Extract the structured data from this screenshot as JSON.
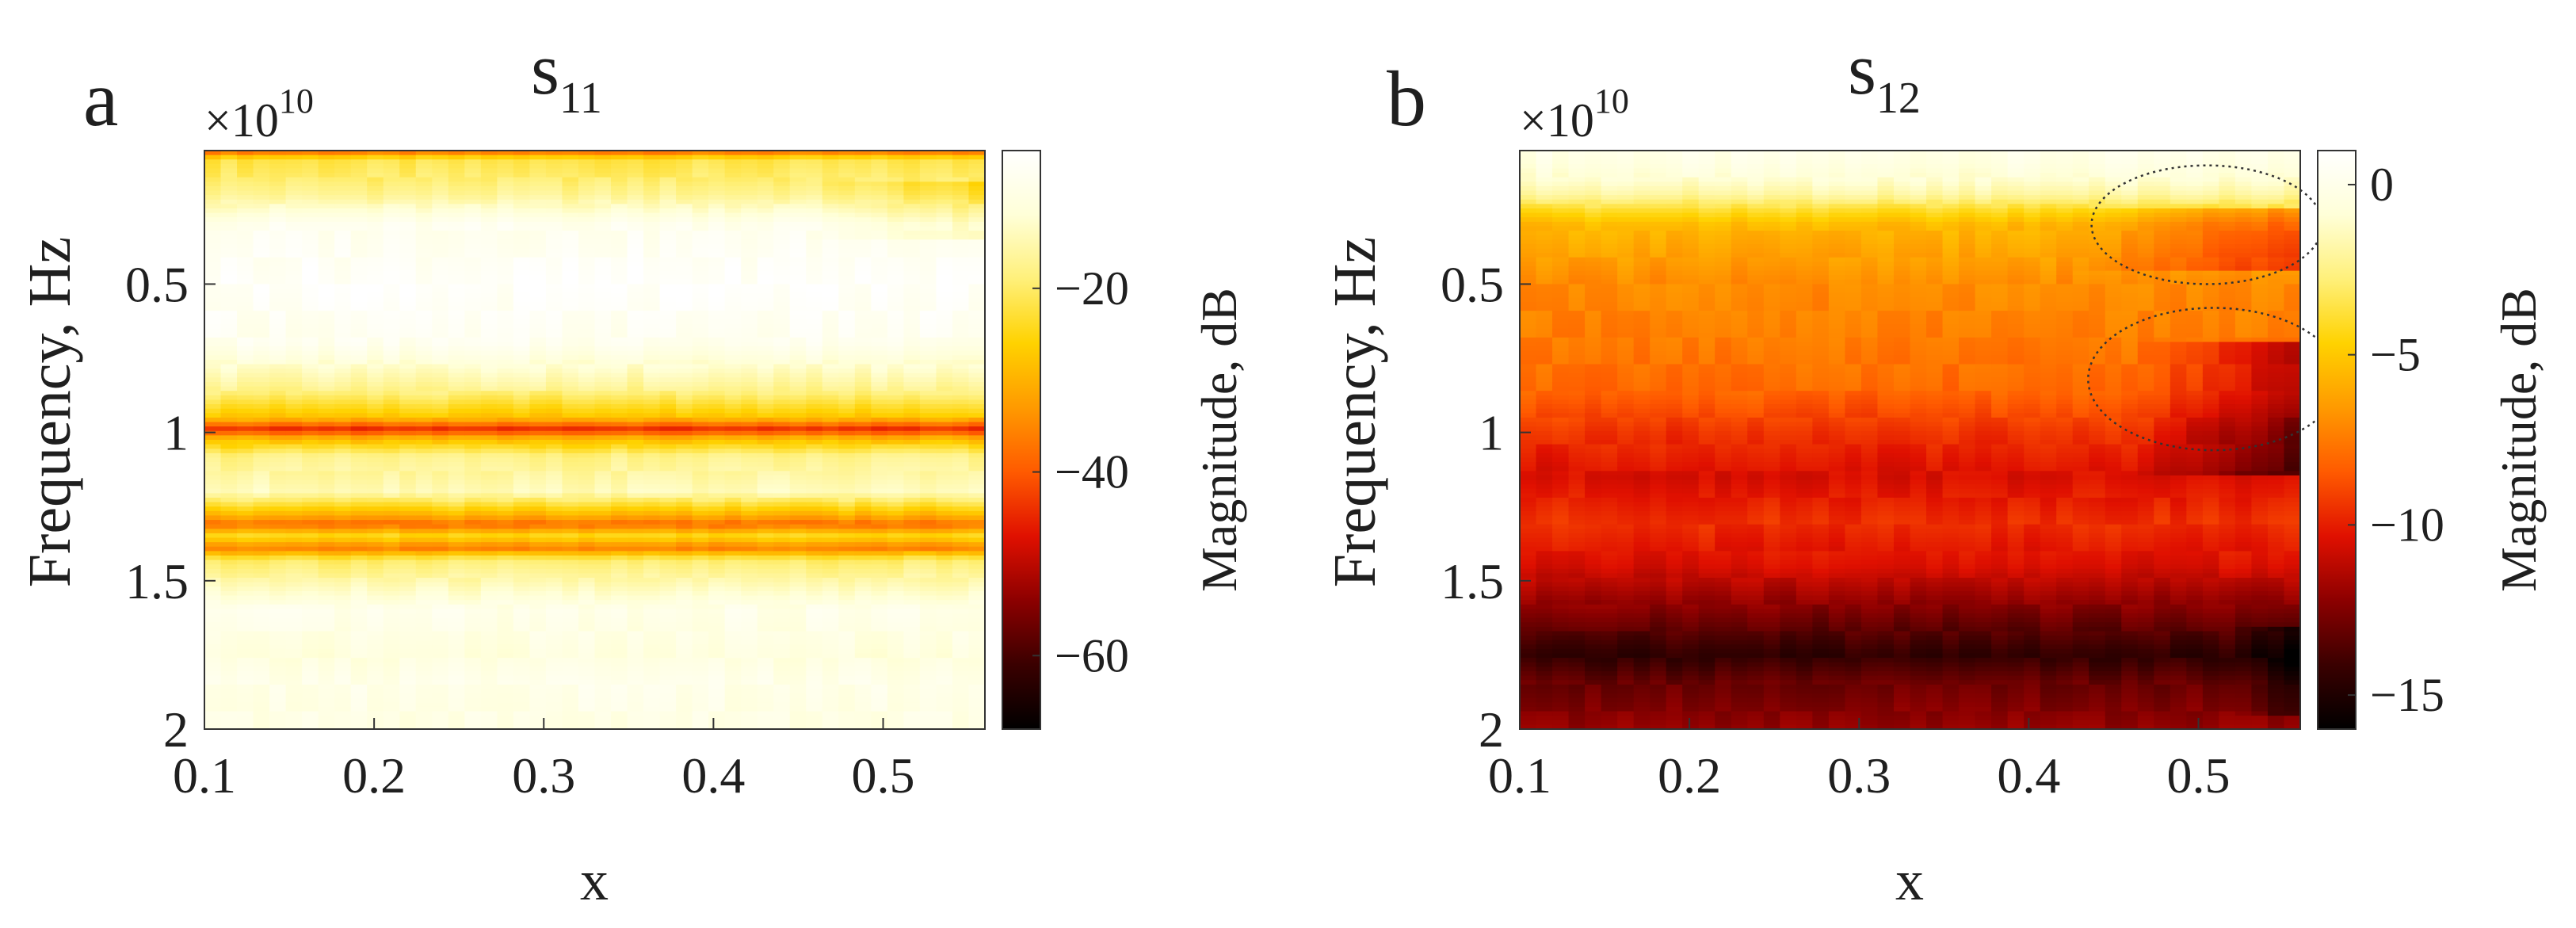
{
  "figure": {
    "colormap": [
      "#000000",
      "#3a0000",
      "#8c0000",
      "#e01000",
      "#ff5a00",
      "#ff9a00",
      "#ffd200",
      "#fff07a",
      "#ffffd8",
      "#ffffff"
    ],
    "contour_color": "#333333"
  },
  "chart_data": [
    {
      "panel_letter": "a",
      "type": "heatmap",
      "title_main": "s",
      "title_sub": "11",
      "xlabel": "x",
      "ylabel": "Frequency, Hz",
      "y_exponent_base": "×10",
      "y_exponent_power": "10",
      "colorbar_label": "Magnitude, dB",
      "x_range": [
        0.1,
        0.56
      ],
      "y_range": [
        0.05,
        2.0
      ],
      "y_scale_factor": 10000000000.0,
      "xticks": [
        0.1,
        0.2,
        0.3,
        0.4,
        0.5
      ],
      "xtick_labels": [
        "0.1",
        "0.2",
        "0.3",
        "0.4",
        "0.5"
      ],
      "yticks": [
        0.5,
        1,
        1.5,
        2
      ],
      "ytick_labels": [
        "0.5",
        "1",
        "1.5",
        "2"
      ],
      "colorbar_range": [
        -68,
        -5
      ],
      "colorbar_ticks": [
        -20,
        -40,
        -60
      ],
      "colorbar_tick_labels": [
        "−20",
        "−40",
        "−60"
      ],
      "x_columns": 48,
      "frequency_profile_dB": [
        [
          0.05,
          -40
        ],
        [
          0.08,
          -22
        ],
        [
          0.14,
          -20
        ],
        [
          0.2,
          -17
        ],
        [
          0.3,
          -8
        ],
        [
          0.5,
          -6
        ],
        [
          0.7,
          -8
        ],
        [
          0.85,
          -17
        ],
        [
          0.95,
          -28
        ],
        [
          0.99,
          -45
        ],
        [
          1.02,
          -30
        ],
        [
          1.08,
          -18
        ],
        [
          1.2,
          -14
        ],
        [
          1.28,
          -30
        ],
        [
          1.31,
          -38
        ],
        [
          1.35,
          -24
        ],
        [
          1.39,
          -36
        ],
        [
          1.43,
          -20
        ],
        [
          1.6,
          -9
        ],
        [
          1.75,
          -11
        ],
        [
          1.85,
          -9
        ],
        [
          2.0,
          -10
        ]
      ],
      "x_trend_dB": [
        {
          "x_from": 0.45,
          "x_to": 0.56,
          "f_from": 0.15,
          "f_to": 0.35,
          "delta_dB": -6
        }
      ],
      "annotations": []
    },
    {
      "panel_letter": "b",
      "type": "heatmap",
      "title_main": "s",
      "title_sub": "12",
      "xlabel": "x",
      "ylabel": "Frequency, Hz",
      "y_exponent_base": "×10",
      "y_exponent_power": "10",
      "colorbar_label": "Magnitude, dB",
      "x_range": [
        0.1,
        0.56
      ],
      "y_range": [
        0.05,
        2.0
      ],
      "y_scale_factor": 10000000000.0,
      "xticks": [
        0.1,
        0.2,
        0.3,
        0.4,
        0.5
      ],
      "xtick_labels": [
        "0.1",
        "0.2",
        "0.3",
        "0.4",
        "0.5"
      ],
      "yticks": [
        0.5,
        1,
        1.5,
        2
      ],
      "ytick_labels": [
        "0.5",
        "1",
        "1.5",
        "2"
      ],
      "colorbar_range": [
        -16,
        1
      ],
      "colorbar_ticks": [
        0,
        -5,
        -10,
        -15
      ],
      "colorbar_tick_labels": [
        "0",
        "−5",
        "−10",
        "−15"
      ],
      "x_columns": 48,
      "frequency_profile_dB": [
        [
          0.05,
          0
        ],
        [
          0.15,
          -1
        ],
        [
          0.2,
          -2
        ],
        [
          0.25,
          -4
        ],
        [
          0.3,
          -5.5
        ],
        [
          0.5,
          -7
        ],
        [
          0.7,
          -7.5
        ],
        [
          0.85,
          -8
        ],
        [
          1.0,
          -9.5
        ],
        [
          1.15,
          -10.5
        ],
        [
          1.3,
          -9.5
        ],
        [
          1.45,
          -10.5
        ],
        [
          1.6,
          -12.5
        ],
        [
          1.75,
          -14.5
        ],
        [
          1.85,
          -13
        ],
        [
          2.0,
          -12
        ]
      ],
      "x_trend_dB": [
        {
          "x_from": 0.42,
          "x_to": 0.56,
          "f_from": 0.25,
          "f_to": 0.45,
          "delta_dB": -3
        },
        {
          "x_from": 0.46,
          "x_to": 0.56,
          "f_from": 0.7,
          "f_to": 1.15,
          "delta_dB": -3.5
        },
        {
          "x_from": 0.52,
          "x_to": 0.56,
          "f_from": 1.65,
          "f_to": 1.95,
          "delta_dB": -2
        }
      ],
      "annotations": [
        {
          "shape": "ellipse",
          "center_x": 0.505,
          "center_freq": 0.3,
          "half_width_x": 0.068,
          "half_height_freq": 0.2
        },
        {
          "shape": "ellipse",
          "center_x": 0.509,
          "center_freq": 0.82,
          "half_width_x": 0.074,
          "half_height_freq": 0.24
        }
      ]
    }
  ]
}
